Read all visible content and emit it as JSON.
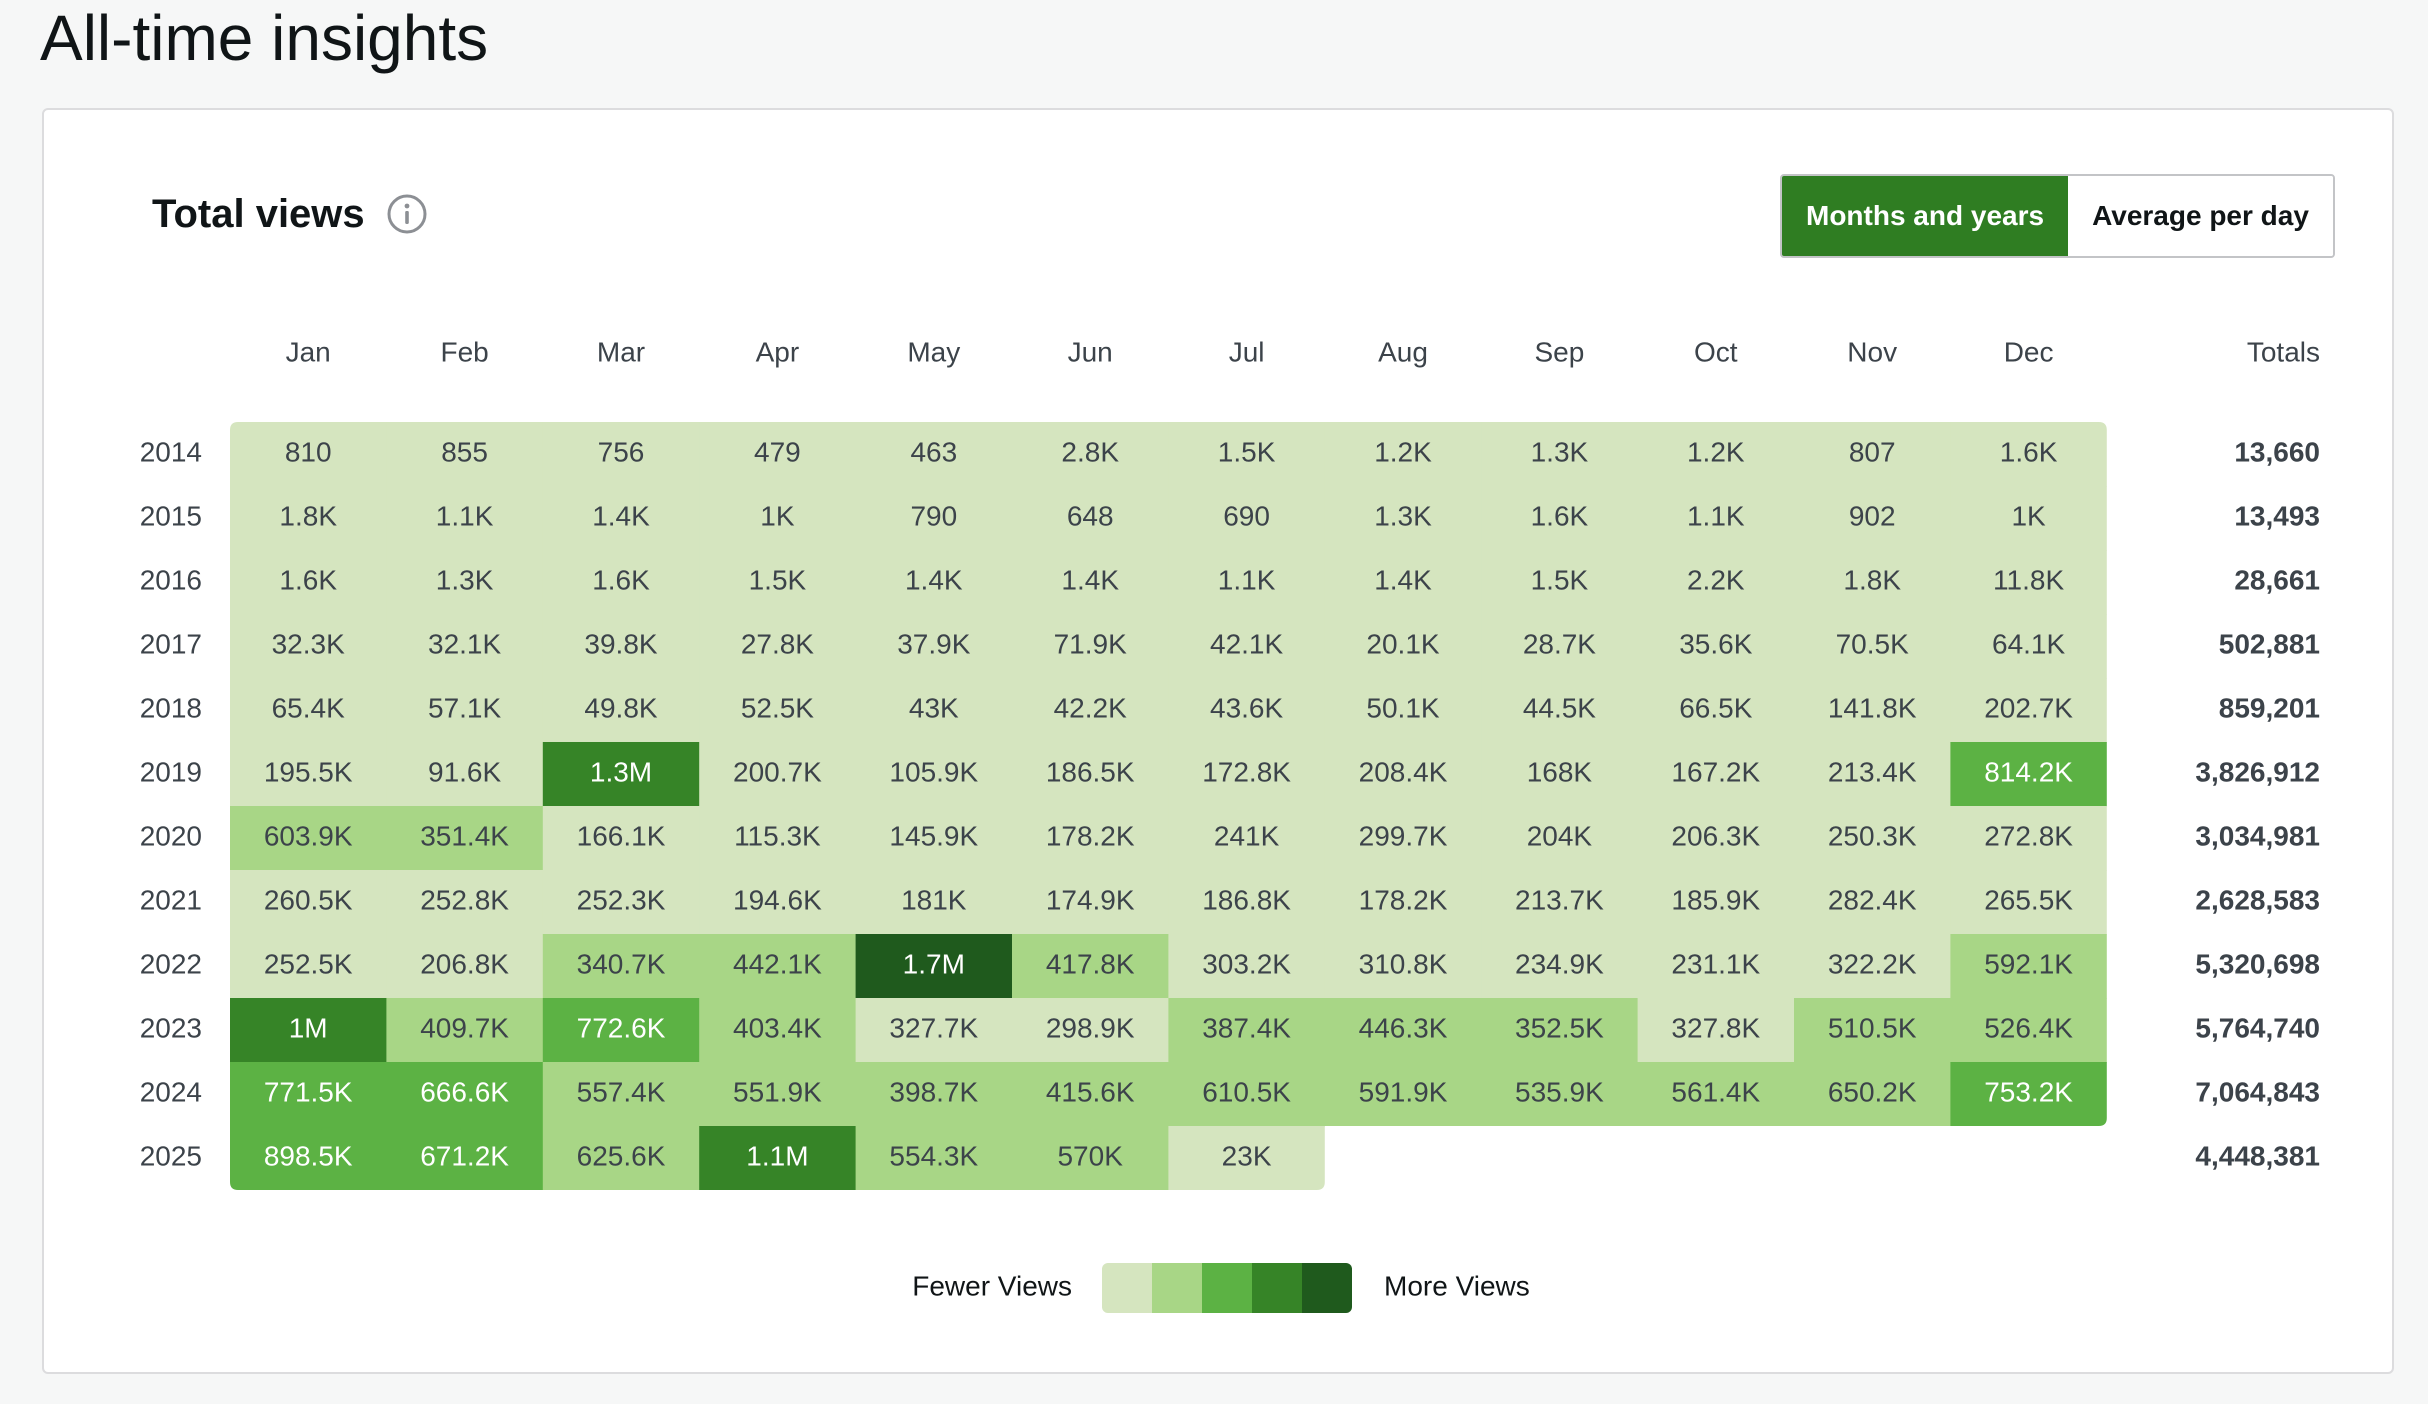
{
  "page": {
    "title": "All-time insights"
  },
  "panel": {
    "title": "Total views",
    "toggle": {
      "options": [
        "Months and years",
        "Average per day"
      ],
      "selected": "Months and years"
    }
  },
  "colors": {
    "scale": [
      "#d5e5bf",
      "#a8d686",
      "#5cb244",
      "#368427",
      "#1f5a1d"
    ],
    "accent": "#2f7d22"
  },
  "legend": {
    "low_label": "Fewer Views",
    "high_label": "More Views"
  },
  "chart_data": {
    "type": "heatmap",
    "columns": [
      "Jan",
      "Feb",
      "Mar",
      "Apr",
      "May",
      "Jun",
      "Jul",
      "Aug",
      "Sep",
      "Oct",
      "Nov",
      "Dec"
    ],
    "totals_header": "Totals",
    "rows": [
      {
        "year": "2014",
        "cells": [
          "810",
          "855",
          "756",
          "479",
          "463",
          "2.8K",
          "1.5K",
          "1.2K",
          "1.3K",
          "1.2K",
          "807",
          "1.6K"
        ],
        "levels": [
          0,
          0,
          0,
          0,
          0,
          0,
          0,
          0,
          0,
          0,
          0,
          0
        ],
        "total": "13,660"
      },
      {
        "year": "2015",
        "cells": [
          "1.8K",
          "1.1K",
          "1.4K",
          "1K",
          "790",
          "648",
          "690",
          "1.3K",
          "1.6K",
          "1.1K",
          "902",
          "1K"
        ],
        "levels": [
          0,
          0,
          0,
          0,
          0,
          0,
          0,
          0,
          0,
          0,
          0,
          0
        ],
        "total": "13,493"
      },
      {
        "year": "2016",
        "cells": [
          "1.6K",
          "1.3K",
          "1.6K",
          "1.5K",
          "1.4K",
          "1.4K",
          "1.1K",
          "1.4K",
          "1.5K",
          "2.2K",
          "1.8K",
          "11.8K"
        ],
        "levels": [
          0,
          0,
          0,
          0,
          0,
          0,
          0,
          0,
          0,
          0,
          0,
          0
        ],
        "total": "28,661"
      },
      {
        "year": "2017",
        "cells": [
          "32.3K",
          "32.1K",
          "39.8K",
          "27.8K",
          "37.9K",
          "71.9K",
          "42.1K",
          "20.1K",
          "28.7K",
          "35.6K",
          "70.5K",
          "64.1K"
        ],
        "levels": [
          0,
          0,
          0,
          0,
          0,
          0,
          0,
          0,
          0,
          0,
          0,
          0
        ],
        "total": "502,881"
      },
      {
        "year": "2018",
        "cells": [
          "65.4K",
          "57.1K",
          "49.8K",
          "52.5K",
          "43K",
          "42.2K",
          "43.6K",
          "50.1K",
          "44.5K",
          "66.5K",
          "141.8K",
          "202.7K"
        ],
        "levels": [
          0,
          0,
          0,
          0,
          0,
          0,
          0,
          0,
          0,
          0,
          0,
          0
        ],
        "total": "859,201"
      },
      {
        "year": "2019",
        "cells": [
          "195.5K",
          "91.6K",
          "1.3M",
          "200.7K",
          "105.9K",
          "186.5K",
          "172.8K",
          "208.4K",
          "168K",
          "167.2K",
          "213.4K",
          "814.2K"
        ],
        "levels": [
          0,
          0,
          3,
          0,
          0,
          0,
          0,
          0,
          0,
          0,
          0,
          2
        ],
        "total": "3,826,912"
      },
      {
        "year": "2020",
        "cells": [
          "603.9K",
          "351.4K",
          "166.1K",
          "115.3K",
          "145.9K",
          "178.2K",
          "241K",
          "299.7K",
          "204K",
          "206.3K",
          "250.3K",
          "272.8K"
        ],
        "levels": [
          1,
          1,
          0,
          0,
          0,
          0,
          0,
          0,
          0,
          0,
          0,
          0
        ],
        "total": "3,034,981"
      },
      {
        "year": "2021",
        "cells": [
          "260.5K",
          "252.8K",
          "252.3K",
          "194.6K",
          "181K",
          "174.9K",
          "186.8K",
          "178.2K",
          "213.7K",
          "185.9K",
          "282.4K",
          "265.5K"
        ],
        "levels": [
          0,
          0,
          0,
          0,
          0,
          0,
          0,
          0,
          0,
          0,
          0,
          0
        ],
        "total": "2,628,583"
      },
      {
        "year": "2022",
        "cells": [
          "252.5K",
          "206.8K",
          "340.7K",
          "442.1K",
          "1.7M",
          "417.8K",
          "303.2K",
          "310.8K",
          "234.9K",
          "231.1K",
          "322.2K",
          "592.1K"
        ],
        "levels": [
          0,
          0,
          1,
          1,
          4,
          1,
          0,
          0,
          0,
          0,
          0,
          1
        ],
        "total": "5,320,698"
      },
      {
        "year": "2023",
        "cells": [
          "1M",
          "409.7K",
          "772.6K",
          "403.4K",
          "327.7K",
          "298.9K",
          "387.4K",
          "446.3K",
          "352.5K",
          "327.8K",
          "510.5K",
          "526.4K"
        ],
        "levels": [
          3,
          1,
          2,
          1,
          0,
          0,
          1,
          1,
          1,
          0,
          1,
          1
        ],
        "total": "5,764,740"
      },
      {
        "year": "2024",
        "cells": [
          "771.5K",
          "666.6K",
          "557.4K",
          "551.9K",
          "398.7K",
          "415.6K",
          "610.5K",
          "591.9K",
          "535.9K",
          "561.4K",
          "650.2K",
          "753.2K"
        ],
        "levels": [
          2,
          2,
          1,
          1,
          1,
          1,
          1,
          1,
          1,
          1,
          1,
          2
        ],
        "total": "7,064,843"
      },
      {
        "year": "2025",
        "cells": [
          "898.5K",
          "671.2K",
          "625.6K",
          "1.1M",
          "554.3K",
          "570K",
          "23K"
        ],
        "levels": [
          2,
          2,
          1,
          3,
          1,
          1,
          0
        ],
        "total": "4,448,381"
      }
    ]
  }
}
